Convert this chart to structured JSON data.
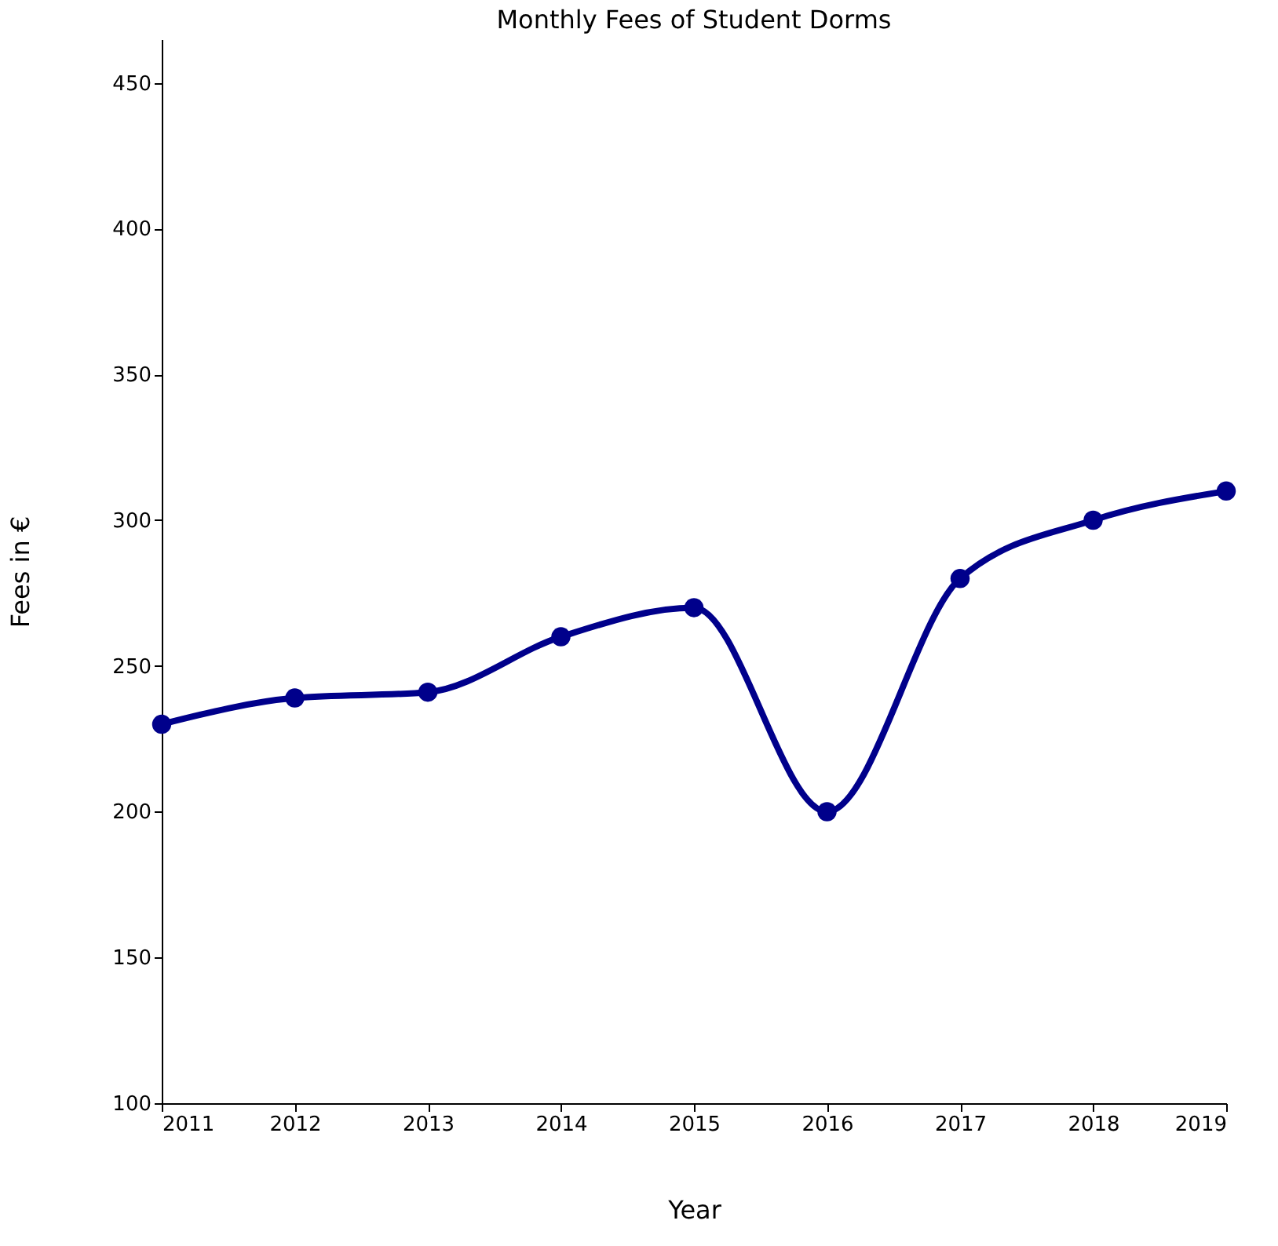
{
  "chart_data": {
    "type": "line",
    "title": "Monthly Fees of Student Dorms",
    "xlabel": "Year",
    "ylabel": "Fees in €",
    "x": [
      2011,
      2012,
      2013,
      2014,
      2015,
      2016,
      2017,
      2018,
      2019
    ],
    "series": [
      {
        "color": "#00008b",
        "values": [
          230,
          239,
          241,
          260,
          270,
          200,
          280,
          300,
          310
        ]
      }
    ],
    "xlim": [
      2011,
      2019
    ],
    "xticks": [
      2011,
      2012,
      2013,
      2014,
      2015,
      2016,
      2017,
      2018,
      2019
    ],
    "ylim": [
      100,
      465
    ],
    "yticks": [
      100,
      150,
      200,
      250,
      300,
      350,
      400,
      450
    ],
    "grid": false,
    "legend": false,
    "marker": "circle",
    "line_style": "solid"
  }
}
